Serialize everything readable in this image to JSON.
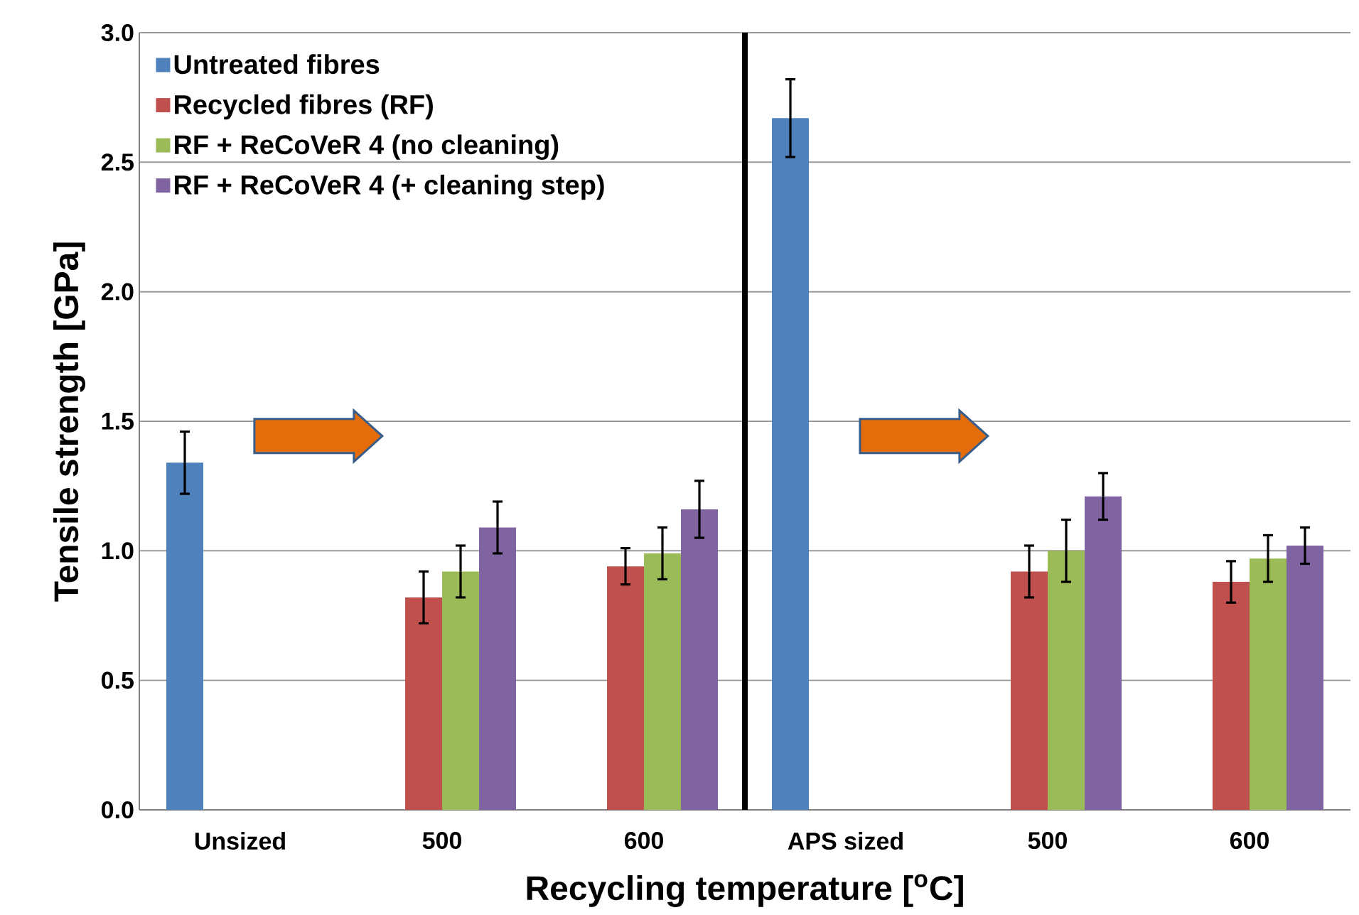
{
  "chart_data": [
    {
      "type": "bar",
      "xlabel": "Recycling temperature [$^{o}$C]",
      "ylabel": "Tensile strength [GPa]",
      "categories": [
        "Unsized",
        "500",
        "600"
      ],
      "series": [
        {
          "name": "Untreated fibres",
          "color": "#4f81bd",
          "values": [
            1.34,
            null,
            null
          ],
          "errors": [
            0.12,
            null,
            null
          ]
        },
        {
          "name": "Recycled fibres (RF)",
          "color": "#c0504d",
          "values": [
            null,
            0.82,
            0.94
          ],
          "errors": [
            null,
            0.1,
            0.07
          ]
        },
        {
          "name": "RF + ReCoVeR 4 (no cleaning)",
          "color": "#9bbb59",
          "values": [
            null,
            0.92,
            0.99
          ],
          "errors": [
            null,
            0.1,
            0.1
          ]
        },
        {
          "name": "RF + ReCoVeR 4 (+ cleaning step)",
          "color": "#8064a2",
          "values": [
            null,
            1.09,
            1.16
          ],
          "errors": [
            null,
            0.1,
            0.11
          ]
        }
      ],
      "ylim": [
        0,
        3
      ],
      "yticks": [
        {
          "value": 0,
          "label": "0.0"
        },
        {
          "value": 0.5,
          "label": "0.5"
        },
        {
          "value": 1,
          "label": "1.0"
        },
        {
          "value": 1.5,
          "label": "1.5"
        },
        {
          "value": 2,
          "label": "2.0"
        },
        {
          "value": 2.5,
          "label": "2.5"
        },
        {
          "value": 3,
          "label": "3.0"
        }
      ],
      "grid": "y",
      "legend": "top left"
    },
    {
      "type": "bar",
      "categories": [
        "APS sized",
        "500",
        "600"
      ],
      "series": [
        {
          "color": "#4f81bd",
          "values": [
            2.67,
            null,
            null
          ],
          "errors": [
            0.15,
            null,
            null
          ]
        },
        {
          "color": "#c0504d",
          "values": [
            null,
            0.92,
            0.88
          ],
          "errors": [
            null,
            0.1,
            0.08
          ]
        },
        {
          "color": "#9bbb59",
          "values": [
            null,
            1.0,
            0.97
          ],
          "errors": [
            null,
            0.12,
            0.09
          ]
        },
        {
          "color": "#8064a2",
          "values": [
            null,
            1.21,
            1.02
          ],
          "errors": [
            null,
            0.09,
            0.07
          ]
        }
      ],
      "ylim": [
        0,
        3
      ],
      "yticks": [
        0,
        0.5,
        1,
        1.5,
        2,
        2.5,
        3
      ],
      "grid": "y",
      "tick_labels": "x"
    }
  ]
}
